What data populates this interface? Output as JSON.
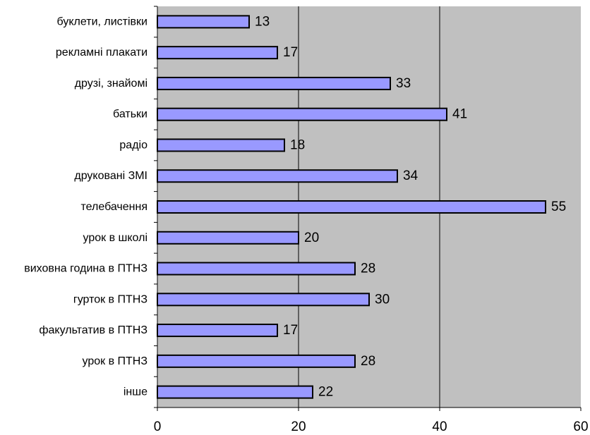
{
  "chart_data": {
    "type": "bar",
    "orientation": "horizontal",
    "categories": [
      "буклети, листівки",
      "рекламні плакати",
      "друзі, знайомі",
      "батьки",
      "радіо",
      "друковані ЗМІ",
      "телебачення",
      "урок в школі",
      "виховна година в ПТНЗ",
      "гурток в ПТНЗ",
      "факультатив в ПТНЗ",
      "урок в ПТНЗ",
      "інше"
    ],
    "values": [
      13,
      17,
      33,
      41,
      18,
      34,
      55,
      20,
      28,
      30,
      17,
      28,
      22
    ],
    "xlim": [
      0,
      60
    ],
    "xticks": [
      0,
      20,
      40,
      60
    ],
    "xtick_labels": [
      "0",
      "20",
      "40",
      "60"
    ],
    "grid": "vertical",
    "legend": "none",
    "title": "",
    "xlabel": "",
    "ylabel": "",
    "colors": {
      "bar_fill": "#9999ff",
      "bar_stroke": "#000000",
      "plot_background": "#c0c0c0",
      "gridline": "#000000",
      "page_background": "#ffffff"
    }
  }
}
